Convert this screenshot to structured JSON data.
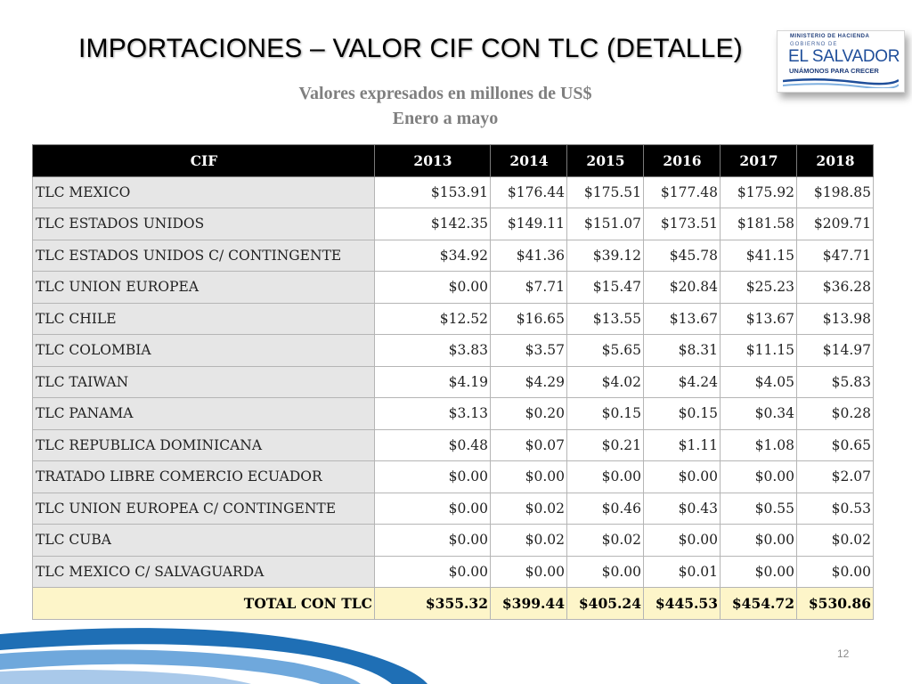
{
  "title": "IMPORTACIONES –  VALOR CIF CON TLC (DETALLE)",
  "subtitle_line1": "Valores expresados en millones de US$",
  "subtitle_line2": "Enero a mayo",
  "logo": {
    "ministry": "MINISTERIO DE HACIENDA",
    "gob": "GOBIERNO DE",
    "name": "EL SALVADOR",
    "tagline": "UNÁMONOS PARA CRECER"
  },
  "table": {
    "headers": [
      "CIF",
      "2013",
      "2014",
      "2015",
      "2016",
      "2017",
      "2018"
    ],
    "rows": [
      {
        "label": "TLC MEXICO",
        "values": [
          "$153.91",
          "$176.44",
          "$175.51",
          "$177.48",
          "$175.92",
          "$198.85"
        ]
      },
      {
        "label": "TLC ESTADOS UNIDOS",
        "values": [
          "$142.35",
          "$149.11",
          "$151.07",
          "$173.51",
          "$181.58",
          "$209.71"
        ]
      },
      {
        "label": "TLC ESTADOS UNIDOS C/ CONTINGENTE",
        "values": [
          "$34.92",
          "$41.36",
          "$39.12",
          "$45.78",
          "$41.15",
          "$47.71"
        ]
      },
      {
        "label": "TLC UNION EUROPEA",
        "values": [
          "$0.00",
          "$7.71",
          "$15.47",
          "$20.84",
          "$25.23",
          "$36.28"
        ]
      },
      {
        "label": "TLC CHILE",
        "values": [
          "$12.52",
          "$16.65",
          "$13.55",
          "$13.67",
          "$13.67",
          "$13.98"
        ]
      },
      {
        "label": "TLC COLOMBIA",
        "values": [
          "$3.83",
          "$3.57",
          "$5.65",
          "$8.31",
          "$11.15",
          "$14.97"
        ]
      },
      {
        "label": "TLC TAIWAN",
        "values": [
          "$4.19",
          "$4.29",
          "$4.02",
          "$4.24",
          "$4.05",
          "$5.83"
        ]
      },
      {
        "label": "TLC PANAMA",
        "values": [
          "$3.13",
          "$0.20",
          "$0.15",
          "$0.15",
          "$0.34",
          "$0.28"
        ]
      },
      {
        "label": "TLC REPUBLICA DOMINICANA",
        "values": [
          "$0.48",
          "$0.07",
          "$0.21",
          "$1.11",
          "$1.08",
          "$0.65"
        ]
      },
      {
        "label": "TRATADO LIBRE COMERCIO ECUADOR",
        "values": [
          "$0.00",
          "$0.00",
          "$0.00",
          "$0.00",
          "$0.00",
          "$2.07"
        ]
      },
      {
        "label": "TLC UNION EUROPEA C/ CONTINGENTE",
        "values": [
          "$0.00",
          "$0.02",
          "$0.46",
          "$0.43",
          "$0.55",
          "$0.53"
        ]
      },
      {
        "label": "TLC CUBA",
        "values": [
          "$0.00",
          "$0.02",
          "$0.02",
          "$0.00",
          "$0.00",
          "$0.02"
        ]
      },
      {
        "label": "TLC MEXICO C/ SALVAGUARDA",
        "values": [
          "$0.00",
          "$0.00",
          "$0.00",
          "$0.01",
          "$0.00",
          "$0.00"
        ]
      }
    ],
    "total": {
      "label": "TOTAL CON TLC",
      "values": [
        "$355.32",
        "$399.44",
        "$405.24",
        "$445.53",
        "$454.72",
        "$530.86"
      ]
    }
  },
  "page_number": "12",
  "colors": {
    "header_bg": "#000000",
    "label_bg": "#e6e6e6",
    "total_bg": "#fdf5c9",
    "subtitle": "#7f7f7f",
    "wave_blue": "#1f6fb5"
  }
}
